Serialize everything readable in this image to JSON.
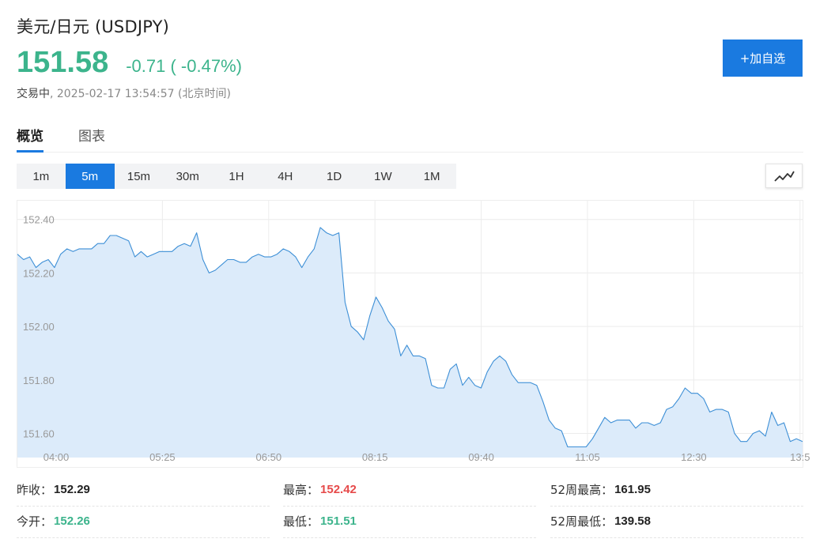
{
  "header": {
    "title": "美元/日元 (USDJPY)",
    "price": "151.58",
    "change": "-0.71 ( -0.47%)",
    "state": "交易中",
    "timestamp": ", 2025-02-17 13:54:57 (北京时间)",
    "add_button_label": "+加自选"
  },
  "tabs": [
    {
      "label": "概览",
      "active": true
    },
    {
      "label": "图表",
      "active": false
    }
  ],
  "periods": [
    {
      "label": "1m",
      "active": false
    },
    {
      "label": "5m",
      "active": true
    },
    {
      "label": "15m",
      "active": false
    },
    {
      "label": "30m",
      "active": false
    },
    {
      "label": "1H",
      "active": false
    },
    {
      "label": "4H",
      "active": false
    },
    {
      "label": "1D",
      "active": false
    },
    {
      "label": "1W",
      "active": false
    },
    {
      "label": "1M",
      "active": false
    }
  ],
  "chart_type_icon": "line-chart-icon",
  "chart_data": {
    "type": "area",
    "ylim": [
      151.51,
      152.47
    ],
    "y_ticks": [
      "152.40",
      "152.20",
      "152.00",
      "151.80",
      "151.60"
    ],
    "x_ticks": [
      "04:00",
      "05:25",
      "06:50",
      "08:15",
      "09:40",
      "11:05",
      "12:30",
      "13:5"
    ],
    "colors": {
      "line": "#3d8fd6",
      "fill": "#dcebfa",
      "grid": "#ececec"
    },
    "values": [
      152.27,
      152.25,
      152.26,
      152.22,
      152.24,
      152.25,
      152.22,
      152.27,
      152.29,
      152.28,
      152.29,
      152.29,
      152.29,
      152.31,
      152.31,
      152.34,
      152.34,
      152.33,
      152.32,
      152.26,
      152.28,
      152.26,
      152.27,
      152.28,
      152.28,
      152.28,
      152.3,
      152.31,
      152.3,
      152.35,
      152.25,
      152.2,
      152.21,
      152.23,
      152.25,
      152.25,
      152.24,
      152.24,
      152.26,
      152.27,
      152.26,
      152.26,
      152.27,
      152.29,
      152.28,
      152.26,
      152.22,
      152.26,
      152.29,
      152.37,
      152.35,
      152.34,
      152.35,
      152.09,
      152.0,
      151.98,
      151.95,
      152.04,
      152.11,
      152.07,
      152.02,
      151.99,
      151.89,
      151.93,
      151.89,
      151.89,
      151.88,
      151.78,
      151.77,
      151.77,
      151.84,
      151.86,
      151.78,
      151.81,
      151.78,
      151.77,
      151.83,
      151.87,
      151.89,
      151.87,
      151.82,
      151.79,
      151.79,
      151.79,
      151.78,
      151.72,
      151.65,
      151.62,
      151.61,
      151.55,
      151.55,
      151.55,
      151.55,
      151.58,
      151.62,
      151.66,
      151.64,
      151.65,
      151.65,
      151.65,
      151.62,
      151.64,
      151.64,
      151.63,
      151.64,
      151.69,
      151.7,
      151.73,
      151.77,
      151.75,
      151.75,
      151.73,
      151.68,
      151.69,
      151.69,
      151.68,
      151.6,
      151.57,
      151.57,
      151.6,
      151.61,
      151.59,
      151.68,
      151.63,
      151.64,
      151.57,
      151.58,
      151.57
    ]
  },
  "stats": [
    {
      "label": "昨收：",
      "value": "152.29",
      "color": "default"
    },
    {
      "label": "最高：",
      "value": "152.42",
      "color": "up"
    },
    {
      "label": "52周最高：",
      "value": "161.95",
      "color": "default"
    },
    {
      "label": "今开：",
      "value": "152.26",
      "color": "down"
    },
    {
      "label": "最低：",
      "value": "151.51",
      "color": "down"
    },
    {
      "label": "52周最低：",
      "value": "139.58",
      "color": "default"
    }
  ]
}
